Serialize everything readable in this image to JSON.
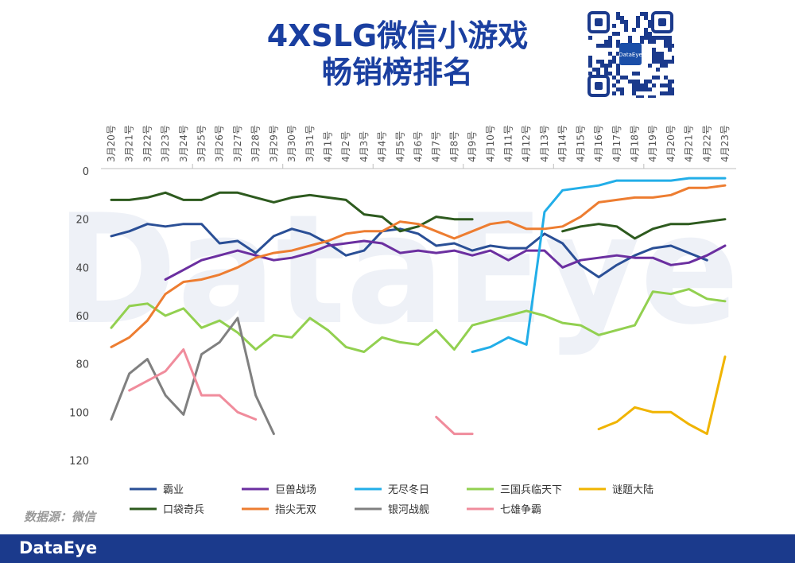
{
  "header": {
    "title_line1": "4XSLG微信小游戏",
    "title_line2": "畅销榜排名"
  },
  "source_label": "数据源：微信",
  "brand": "DataEye",
  "watermark": "DataEye",
  "qr_logo": "DataEye",
  "colors": {
    "footer": "#1b3a8c",
    "title": "#1a3fa0"
  },
  "chart_data": {
    "type": "line",
    "x": [
      "3月20号",
      "3月21号",
      "3月22号",
      "3月23号",
      "3月24号",
      "3月25号",
      "3月26号",
      "3月27号",
      "3月28号",
      "3月29号",
      "3月30号",
      "3月31号",
      "4月1号",
      "4月2号",
      "4月3号",
      "4月4号",
      "4月5号",
      "4月6号",
      "4月7号",
      "4月8号",
      "4月9号",
      "4月10号",
      "4月11号",
      "4月12号",
      "4月13号",
      "4月14号",
      "4月15号",
      "4月16号",
      "4月17号",
      "4月18号",
      "4月19号",
      "4月20号",
      "4月21号",
      "4月22号",
      "4月23号"
    ],
    "ylim": [
      0,
      120
    ],
    "y_ticks": [
      0,
      20,
      40,
      60,
      80,
      100,
      120
    ],
    "y_reversed": true,
    "grid": false,
    "legend_position": "bottom",
    "series": [
      {
        "name": "霸业",
        "color": "#2a4f96",
        "values": [
          27,
          25,
          22,
          23,
          22,
          22,
          30,
          29,
          34,
          27,
          24,
          26,
          30,
          35,
          33,
          25,
          24,
          26,
          31,
          30,
          33,
          31,
          32,
          32,
          26,
          30,
          39,
          44,
          39,
          35,
          32,
          31,
          34,
          37,
          null
        ]
      },
      {
        "name": "巨兽战场",
        "color": "#6b2fa0",
        "values": [
          null,
          null,
          null,
          45,
          41,
          37,
          35,
          33,
          35,
          37,
          36,
          34,
          31,
          30,
          29,
          30,
          34,
          33,
          34,
          33,
          35,
          33,
          37,
          33,
          33,
          40,
          37,
          36,
          35,
          36,
          36,
          39,
          38,
          35,
          31
        ]
      },
      {
        "name": "无尽冬日",
        "color": "#22aee8",
        "values": [
          null,
          null,
          null,
          null,
          null,
          null,
          null,
          null,
          null,
          null,
          null,
          null,
          null,
          null,
          null,
          null,
          null,
          null,
          null,
          null,
          75,
          73,
          69,
          72,
          17,
          8,
          7,
          6,
          4,
          4,
          4,
          4,
          3,
          3,
          3
        ]
      },
      {
        "name": "三国兵临天下",
        "color": "#92d050",
        "values": [
          65,
          56,
          55,
          60,
          57,
          65,
          62,
          67,
          74,
          68,
          69,
          61,
          66,
          73,
          75,
          69,
          71,
          72,
          66,
          74,
          64,
          62,
          60,
          58,
          60,
          63,
          64,
          68,
          66,
          64,
          50,
          51,
          49,
          53,
          54
        ]
      },
      {
        "name": "谜题大陆",
        "color": "#f0b400",
        "values": [
          null,
          null,
          null,
          null,
          null,
          null,
          null,
          null,
          null,
          null,
          null,
          null,
          null,
          null,
          null,
          null,
          null,
          null,
          null,
          null,
          null,
          null,
          null,
          null,
          null,
          null,
          null,
          107,
          104,
          98,
          100,
          100,
          105,
          109,
          77
        ]
      },
      {
        "name": "口袋奇兵",
        "color": "#2d5a1e",
        "values": [
          12,
          12,
          11,
          9,
          12,
          12,
          9,
          9,
          11,
          13,
          11,
          10,
          11,
          12,
          18,
          19,
          25,
          23,
          19,
          20,
          20,
          null,
          null,
          null,
          null,
          25,
          23,
          22,
          23,
          28,
          24,
          22,
          22,
          21,
          20
        ]
      },
      {
        "name": "指尖无双",
        "color": "#ed7d31",
        "values": [
          73,
          69,
          62,
          51,
          46,
          45,
          43,
          40,
          36,
          34,
          33,
          31,
          29,
          26,
          25,
          25,
          21,
          22,
          25,
          28,
          25,
          22,
          21,
          24,
          24,
          23,
          19,
          13,
          12,
          11,
          11,
          10,
          7,
          7,
          6
        ]
      },
      {
        "name": "银河战舰",
        "color": "#808080",
        "values": [
          103,
          84,
          78,
          93,
          101,
          76,
          71,
          61,
          93,
          109,
          null,
          null,
          null,
          null,
          null,
          null,
          null,
          null,
          null,
          null,
          null,
          null,
          null,
          null,
          null,
          null,
          null,
          null,
          null,
          null,
          null,
          null,
          null,
          null,
          null
        ]
      },
      {
        "name": "七雄争霸",
        "color": "#f08c9c",
        "values": [
          null,
          91,
          87,
          83,
          74,
          93,
          93,
          100,
          103,
          null,
          null,
          null,
          null,
          null,
          null,
          null,
          null,
          null,
          102,
          109,
          109,
          null,
          null,
          null,
          null,
          null,
          null,
          null,
          null,
          null,
          null,
          null,
          null,
          null,
          null
        ]
      }
    ]
  }
}
